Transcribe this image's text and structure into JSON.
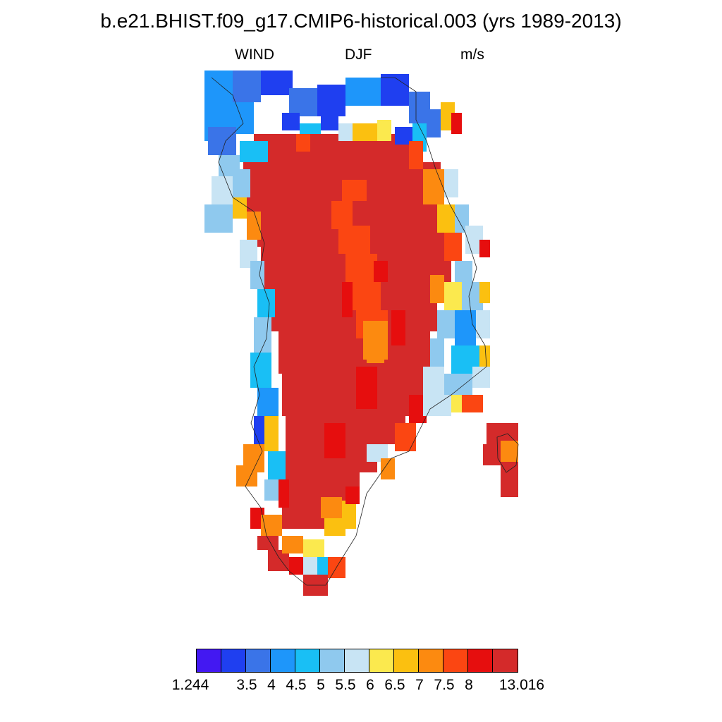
{
  "title": "b.e21.BHIST.f09_g17.CMIP6-historical.003 (yrs 1989-2013)",
  "subtitle": {
    "left": "WIND",
    "center": "DJF",
    "right": "m/s"
  },
  "colorbar": {
    "colors": [
      "#4318f2",
      "#1f3ff0",
      "#3a74e8",
      "#1e96fa",
      "#19bff5",
      "#8fc9ee",
      "#c8e4f4",
      "#fbe94e",
      "#fbc010",
      "#fc8a10",
      "#fb4612",
      "#e60e0e",
      "#d42a2a"
    ],
    "labels": [
      "1.244",
      "3.5",
      "4",
      "4.5",
      "5",
      "5.5",
      "6",
      "6.5",
      "7",
      "7.5",
      "8",
      "13.016"
    ]
  }
}
